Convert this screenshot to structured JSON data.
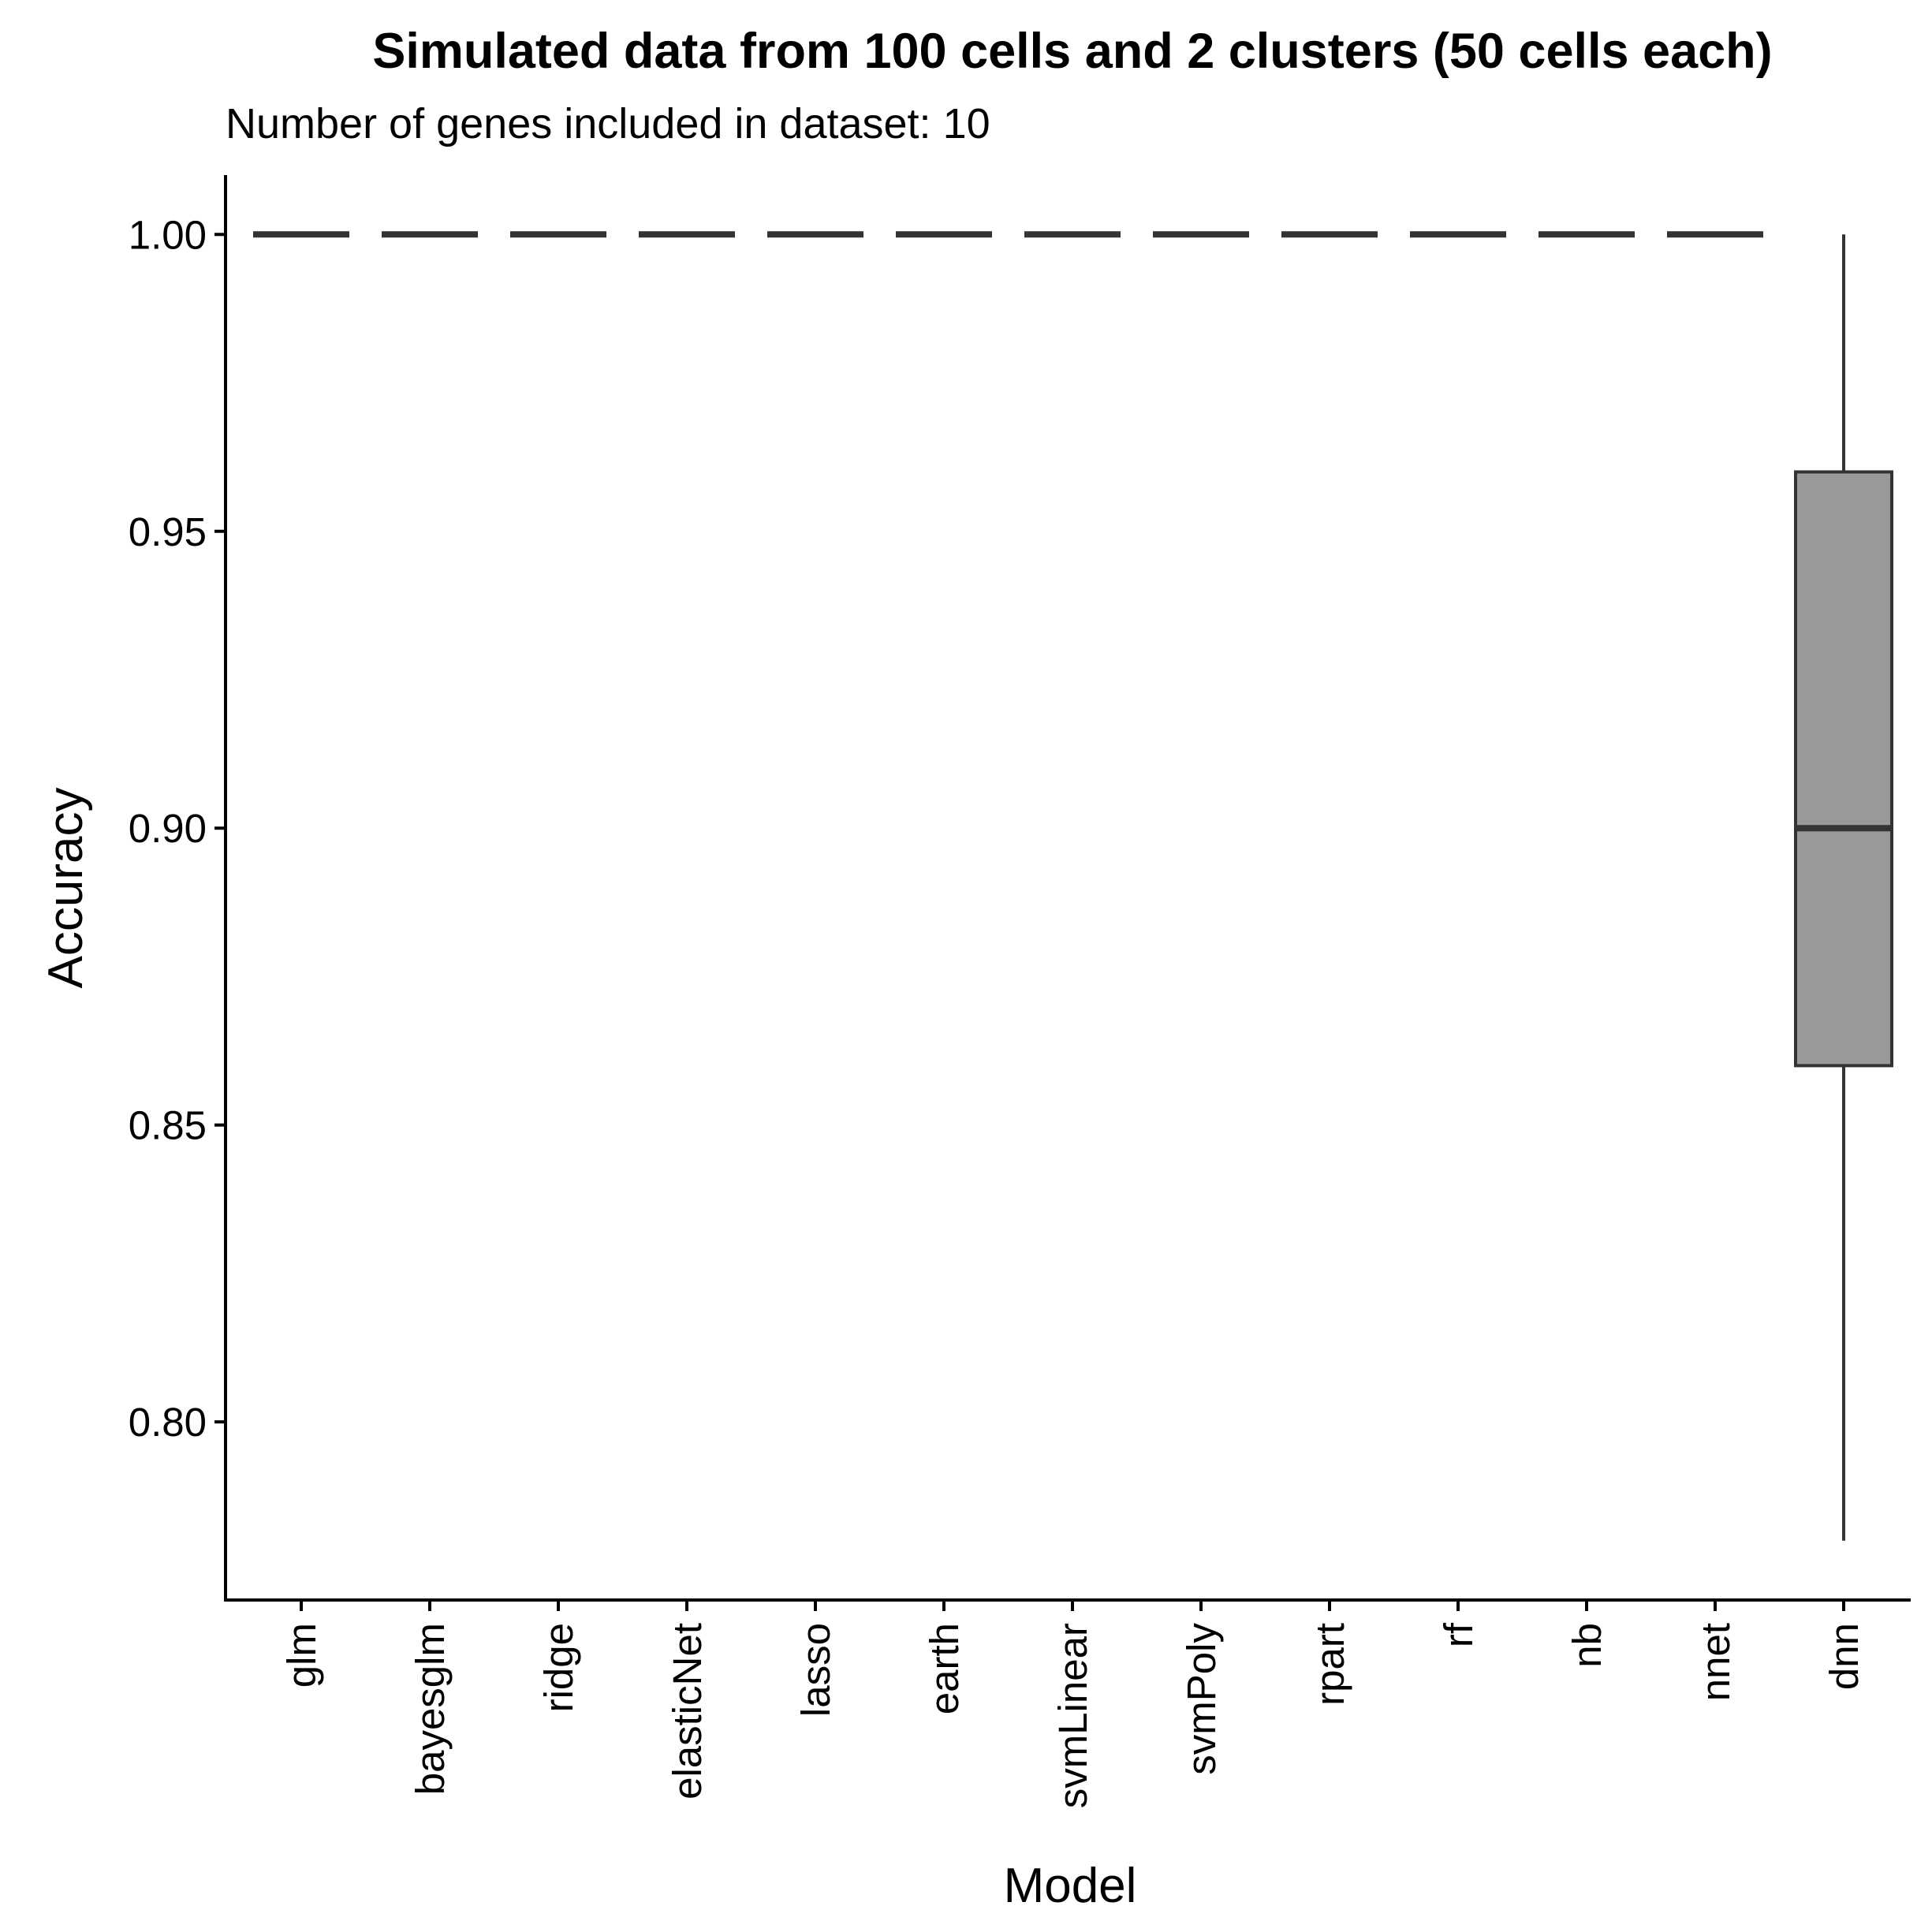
{
  "chart_data": {
    "type": "boxplot",
    "title": "Simulated data from 100 cells and 2 clusters (50 cells each)",
    "subtitle": "Number of genes included in dataset: 10",
    "xlabel": "Model",
    "ylabel": "Accuracy",
    "ylim": [
      0.77,
      1.01
    ],
    "yticks": [
      0.8,
      0.85,
      0.9,
      0.95,
      1.0
    ],
    "ytick_labels": [
      "0.80",
      "0.85",
      "0.90",
      "0.95",
      "1.00"
    ],
    "categories": [
      "glm",
      "bayesglm",
      "ridge",
      "elasticNet",
      "lasso",
      "earth",
      "svmLinear",
      "svmPoly",
      "rpart",
      "rf",
      "nb",
      "nnet",
      "dnn"
    ],
    "boxes": [
      {
        "model": "glm",
        "min": 1.0,
        "q1": 1.0,
        "median": 1.0,
        "q3": 1.0,
        "max": 1.0
      },
      {
        "model": "bayesglm",
        "min": 1.0,
        "q1": 1.0,
        "median": 1.0,
        "q3": 1.0,
        "max": 1.0
      },
      {
        "model": "ridge",
        "min": 1.0,
        "q1": 1.0,
        "median": 1.0,
        "q3": 1.0,
        "max": 1.0
      },
      {
        "model": "elasticNet",
        "min": 1.0,
        "q1": 1.0,
        "median": 1.0,
        "q3": 1.0,
        "max": 1.0
      },
      {
        "model": "lasso",
        "min": 1.0,
        "q1": 1.0,
        "median": 1.0,
        "q3": 1.0,
        "max": 1.0
      },
      {
        "model": "earth",
        "min": 1.0,
        "q1": 1.0,
        "median": 1.0,
        "q3": 1.0,
        "max": 1.0
      },
      {
        "model": "svmLinear",
        "min": 1.0,
        "q1": 1.0,
        "median": 1.0,
        "q3": 1.0,
        "max": 1.0
      },
      {
        "model": "svmPoly",
        "min": 1.0,
        "q1": 1.0,
        "median": 1.0,
        "q3": 1.0,
        "max": 1.0
      },
      {
        "model": "rpart",
        "min": 1.0,
        "q1": 1.0,
        "median": 1.0,
        "q3": 1.0,
        "max": 1.0
      },
      {
        "model": "rf",
        "min": 1.0,
        "q1": 1.0,
        "median": 1.0,
        "q3": 1.0,
        "max": 1.0
      },
      {
        "model": "nb",
        "min": 1.0,
        "q1": 1.0,
        "median": 1.0,
        "q3": 1.0,
        "max": 1.0
      },
      {
        "model": "nnet",
        "min": 1.0,
        "q1": 1.0,
        "median": 1.0,
        "q3": 1.0,
        "max": 1.0
      },
      {
        "model": "dnn",
        "min": 0.78,
        "q1": 0.86,
        "median": 0.9,
        "q3": 0.96,
        "max": 1.0
      }
    ],
    "grid": false,
    "legend": "none",
    "box_fill": "#999999",
    "line_color": "#333333",
    "axis_color": "#000000"
  }
}
